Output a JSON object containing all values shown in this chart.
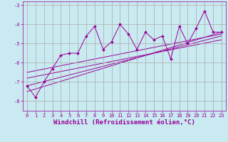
{
  "xlabel": "Windchill (Refroidissement éolien,°C)",
  "ylabel": "",
  "bg_color": "#c8eaf0",
  "line_color": "#990099",
  "grid_color": "#aaaaaa",
  "x_data": [
    0,
    1,
    2,
    3,
    4,
    5,
    6,
    7,
    8,
    9,
    10,
    11,
    12,
    13,
    14,
    15,
    16,
    17,
    18,
    19,
    20,
    21,
    22,
    23
  ],
  "y_data": [
    -7.2,
    -7.8,
    -7.0,
    -6.3,
    -5.6,
    -5.5,
    -5.5,
    -4.6,
    -4.1,
    -5.3,
    -4.9,
    -4.0,
    -4.5,
    -5.3,
    -4.4,
    -4.8,
    -4.6,
    -5.8,
    -4.1,
    -5.0,
    -4.2,
    -3.3,
    -4.4,
    -4.4
  ],
  "reg_lines": [
    {
      "x0": 0,
      "y0": -7.5,
      "x1": 23,
      "y1": -4.4
    },
    {
      "x0": 0,
      "y0": -7.2,
      "x1": 23,
      "y1": -4.6
    },
    {
      "x0": 0,
      "y0": -6.8,
      "x1": 23,
      "y1": -4.8
    },
    {
      "x0": 0,
      "y0": -6.5,
      "x1": 23,
      "y1": -4.5
    }
  ],
  "xlim": [
    -0.5,
    23.5
  ],
  "ylim": [
    -8.5,
    -2.8
  ],
  "yticks": [
    -8,
    -7,
    -6,
    -5,
    -4,
    -3
  ],
  "xticks": [
    0,
    1,
    2,
    3,
    4,
    5,
    6,
    7,
    8,
    9,
    10,
    11,
    12,
    13,
    14,
    15,
    16,
    17,
    18,
    19,
    20,
    21,
    22,
    23
  ],
  "tick_fontsize": 5.0,
  "xlabel_fontsize": 6.5
}
